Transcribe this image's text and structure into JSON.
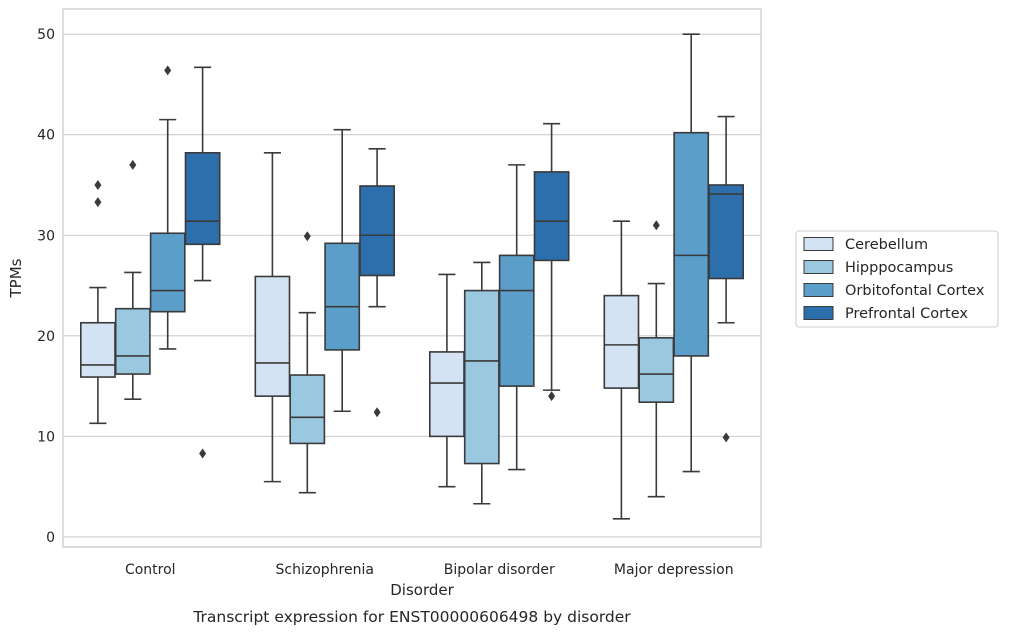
{
  "chart_data": {
    "type": "box",
    "xlabel": "Disorder",
    "ylabel": "TPMs",
    "caption": "Transcript expression for ENST00000606498 by disorder",
    "ylim": [
      -1,
      52.5
    ],
    "yticks": [
      0,
      10,
      20,
      30,
      40,
      50
    ],
    "grid": "horizontal",
    "legend_position": "right",
    "categories": [
      "Control",
      "Schizophrenia",
      "Bipolar disorder",
      "Major depression"
    ],
    "series": [
      {
        "name": "Cerebellum",
        "color": "#d3e3f3",
        "boxes": [
          {
            "whislo": 11.3,
            "q1": 15.9,
            "med": 17.1,
            "q3": 21.3,
            "whishi": 24.8,
            "fliers": [
              33.3,
              35.0
            ]
          },
          {
            "whislo": 5.5,
            "q1": 14.0,
            "med": 17.3,
            "q3": 25.9,
            "whishi": 38.2,
            "fliers": []
          },
          {
            "whislo": 5.0,
            "q1": 10.0,
            "med": 15.3,
            "q3": 18.4,
            "whishi": 26.1,
            "fliers": []
          },
          {
            "whislo": 1.8,
            "q1": 14.8,
            "med": 19.1,
            "q3": 24.0,
            "whishi": 31.4,
            "fliers": []
          }
        ]
      },
      {
        "name": "Hipppocampus",
        "color": "#9ac8e0",
        "boxes": [
          {
            "whislo": 13.7,
            "q1": 16.2,
            "med": 18.0,
            "q3": 22.7,
            "whishi": 26.3,
            "fliers": [
              37.0
            ]
          },
          {
            "whislo": 4.4,
            "q1": 9.3,
            "med": 11.9,
            "q3": 16.1,
            "whishi": 22.3,
            "fliers": [
              29.9
            ]
          },
          {
            "whislo": 3.3,
            "q1": 7.3,
            "med": 17.5,
            "q3": 24.5,
            "whishi": 27.3,
            "fliers": []
          },
          {
            "whislo": 4.0,
            "q1": 13.4,
            "med": 16.2,
            "q3": 19.8,
            "whishi": 25.2,
            "fliers": [
              31.0
            ]
          }
        ]
      },
      {
        "name": "Orbitofontal Cortex",
        "color": "#5a9ec9",
        "boxes": [
          {
            "whislo": 18.7,
            "q1": 22.4,
            "med": 24.5,
            "q3": 30.2,
            "whishi": 41.5,
            "fliers": [
              46.4
            ]
          },
          {
            "whislo": 12.5,
            "q1": 18.6,
            "med": 22.9,
            "q3": 29.2,
            "whishi": 40.5,
            "fliers": []
          },
          {
            "whislo": 6.7,
            "q1": 15.0,
            "med": 24.5,
            "q3": 28.0,
            "whishi": 37.0,
            "fliers": []
          },
          {
            "whislo": 6.5,
            "q1": 18.0,
            "med": 28.0,
            "q3": 40.2,
            "whishi": 50.0,
            "fliers": []
          }
        ]
      },
      {
        "name": "Prefrontal Cortex",
        "color": "#2d6fad",
        "boxes": [
          {
            "whislo": 25.5,
            "q1": 29.1,
            "med": 31.4,
            "q3": 38.2,
            "whishi": 46.7,
            "fliers": [
              8.3
            ]
          },
          {
            "whislo": 22.9,
            "q1": 26.0,
            "med": 30.0,
            "q3": 34.9,
            "whishi": 38.6,
            "fliers": [
              12.4
            ]
          },
          {
            "whislo": 14.6,
            "q1": 27.5,
            "med": 31.4,
            "q3": 36.3,
            "whishi": 41.1,
            "fliers": [
              14.0
            ]
          },
          {
            "whislo": 21.3,
            "q1": 25.7,
            "med": 34.1,
            "q3": 35.0,
            "whishi": 41.8,
            "fliers": [
              9.9
            ]
          }
        ]
      }
    ]
  }
}
